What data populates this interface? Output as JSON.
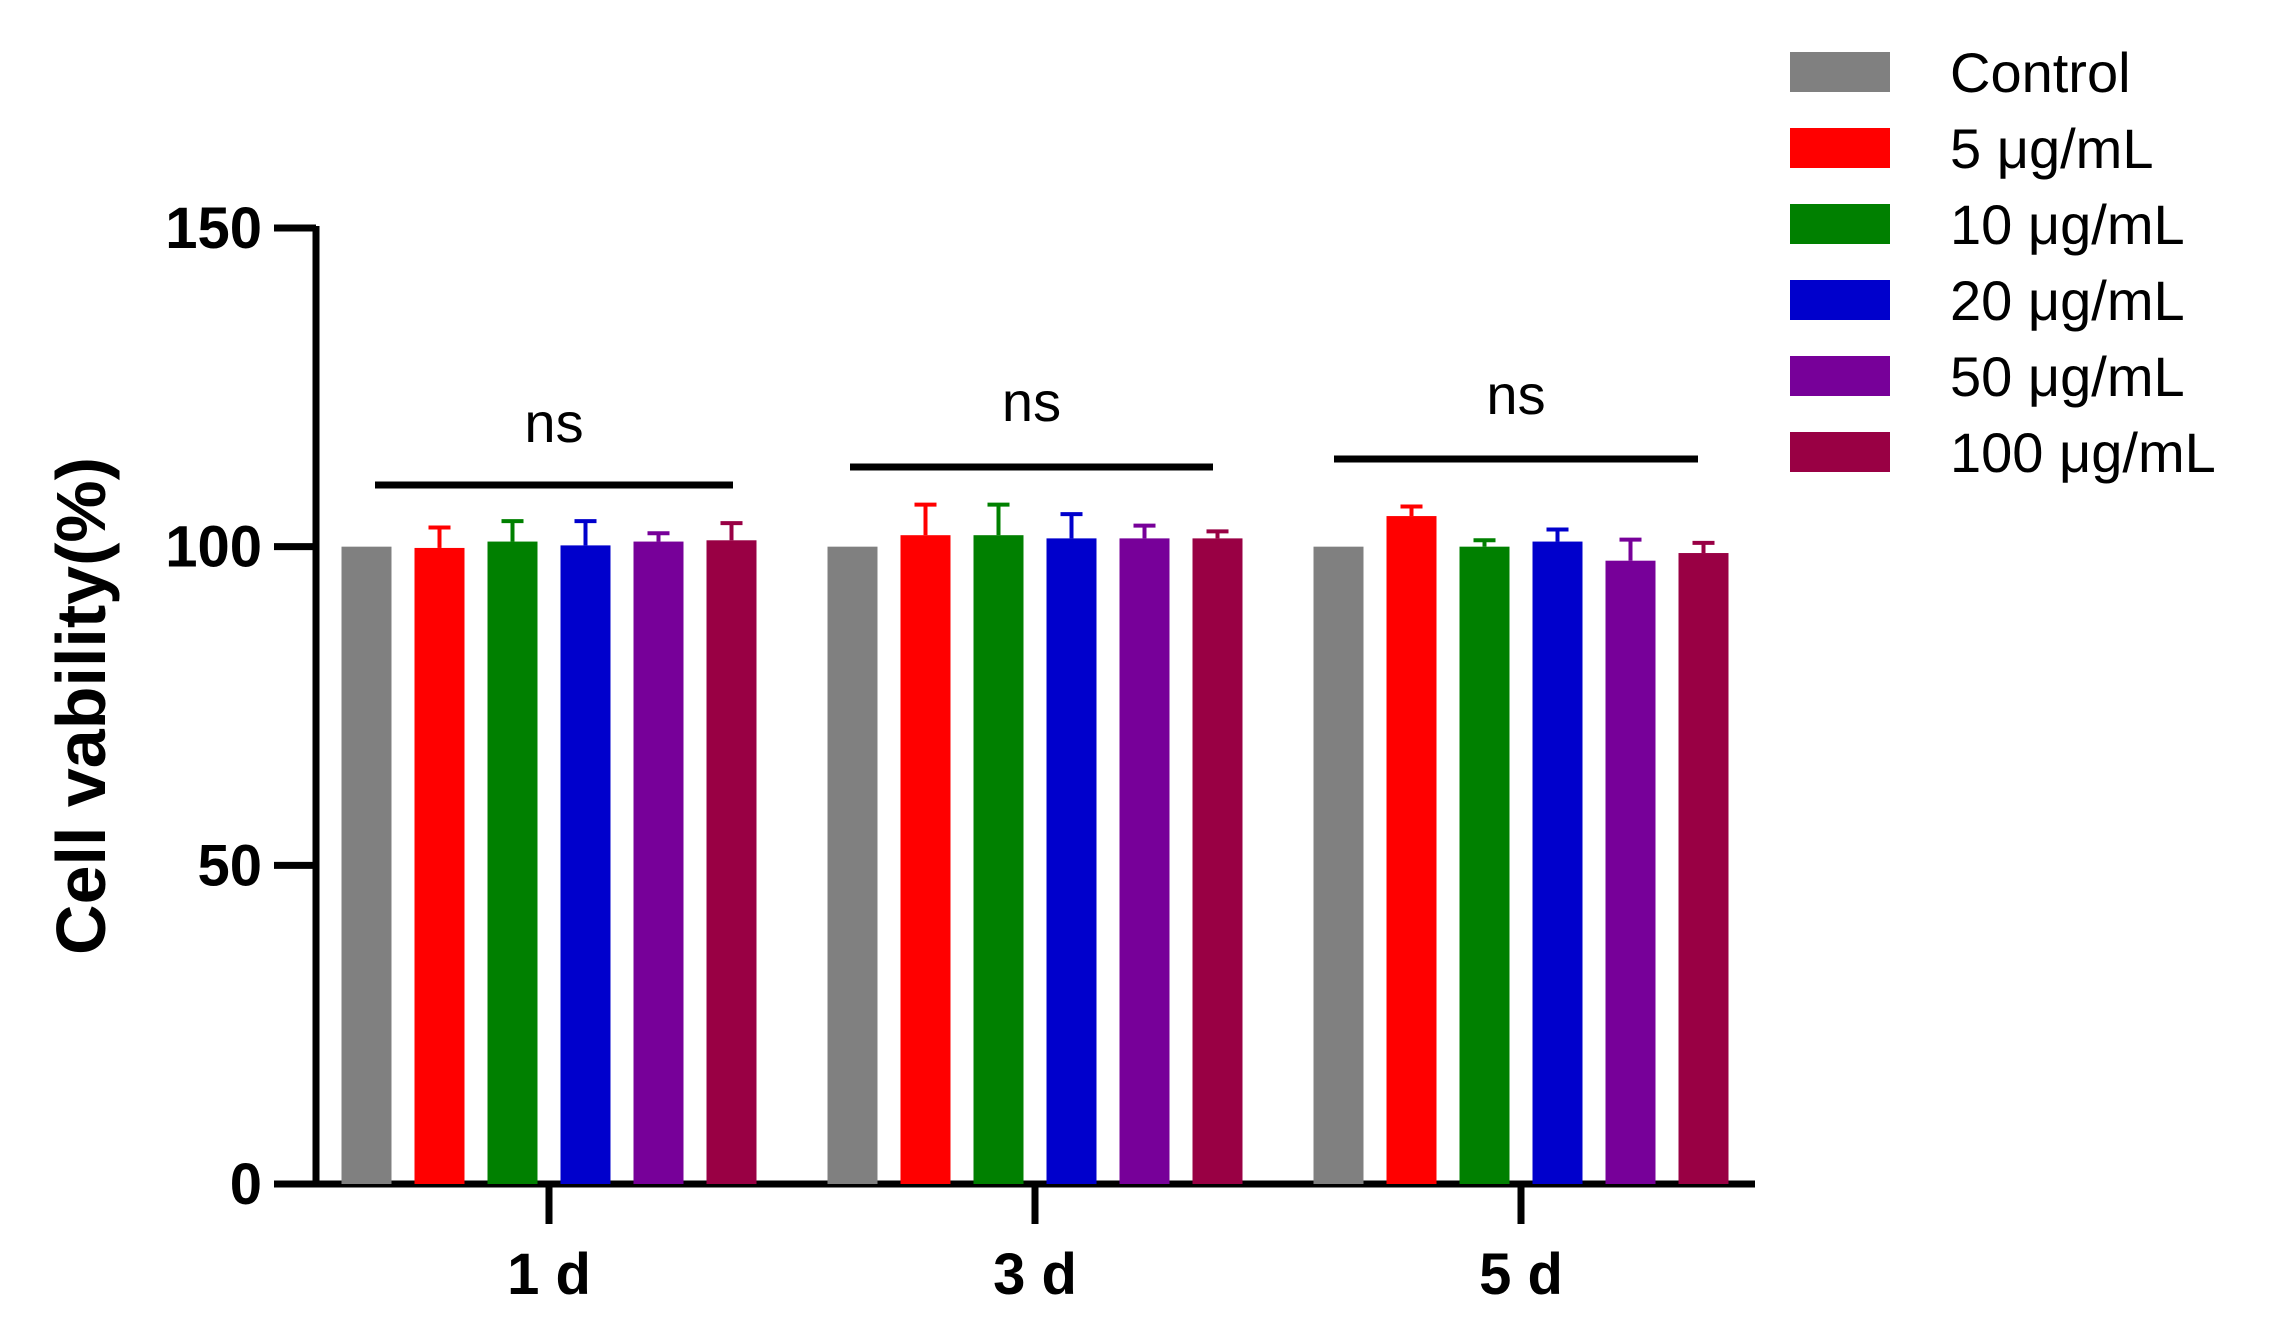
{
  "chart_data": {
    "type": "bar",
    "title": "",
    "xlabel": "",
    "ylabel": "Cell vability(%)",
    "ylim": [
      0,
      150
    ],
    "yticks": [
      0,
      50,
      100,
      150
    ],
    "categories": [
      "1 d",
      "3 d",
      "5 d"
    ],
    "series": [
      {
        "name": "Control",
        "color": "#808080",
        "values": [
          100,
          100,
          100
        ],
        "errors": [
          0,
          0,
          0
        ]
      },
      {
        "name": "5 μg/mL",
        "color": "#FF0000",
        "values": [
          99.8,
          101.8,
          104.8
        ],
        "errors": [
          3.2,
          4.8,
          1.5
        ]
      },
      {
        "name": "10 μg/mL",
        "color": "#008000",
        "values": [
          100.8,
          101.8,
          100
        ],
        "errors": [
          3.2,
          4.8,
          1.0
        ]
      },
      {
        "name": "20 μg/mL",
        "color": "#0000CC",
        "values": [
          100.2,
          101.3,
          100.8
        ],
        "errors": [
          3.8,
          3.8,
          1.9
        ]
      },
      {
        "name": "50 μg/mL",
        "color": "#770099",
        "values": [
          100.8,
          101.3,
          97.8
        ],
        "errors": [
          1.3,
          2.0,
          3.3
        ]
      },
      {
        "name": "100 μg/mL",
        "color": "#990044",
        "values": [
          101,
          101.3,
          99
        ],
        "errors": [
          2.7,
          1.1,
          1.6
        ]
      }
    ],
    "annotations": [
      {
        "text": "ns",
        "category": "1 d"
      },
      {
        "text": "ns",
        "category": "3 d"
      },
      {
        "text": "ns",
        "category": "5 d"
      }
    ],
    "legend": "right",
    "grid": false
  }
}
